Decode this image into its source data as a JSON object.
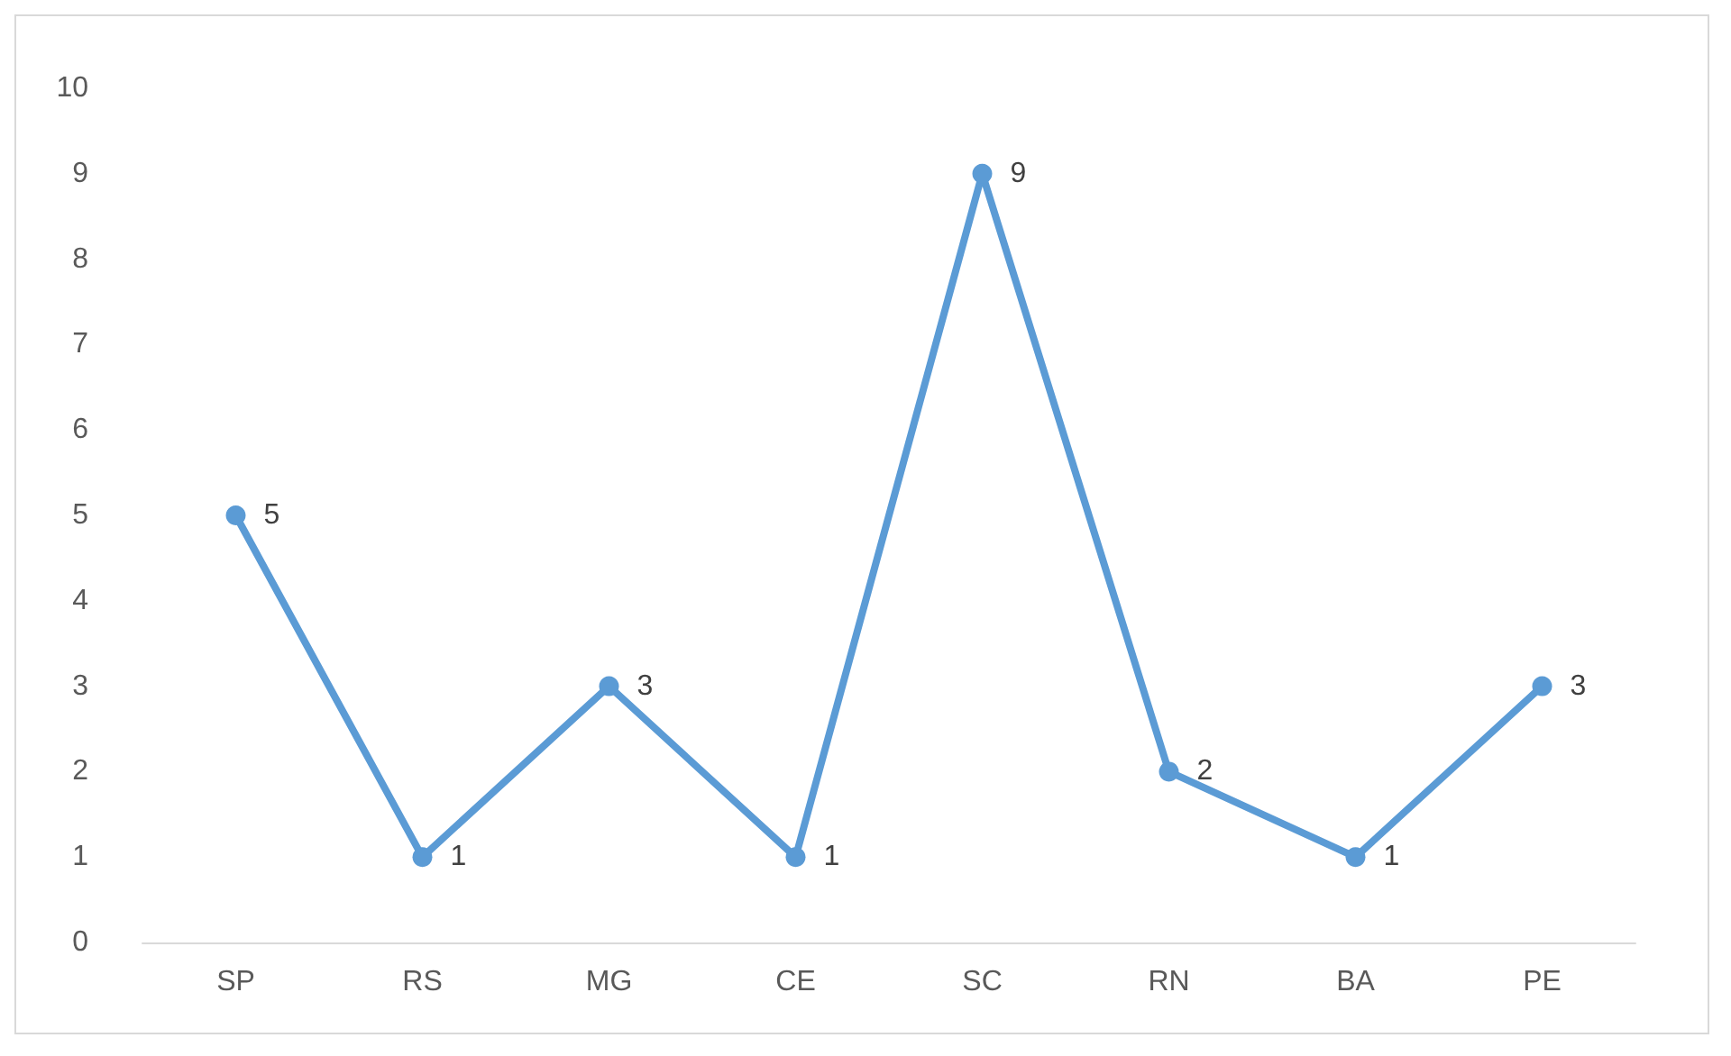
{
  "chart_data": {
    "type": "line",
    "categories": [
      "SP",
      "RS",
      "MG",
      "CE",
      "SC",
      "RN",
      "BA",
      "PE"
    ],
    "series": [
      {
        "color": "#5b9bd5",
        "values": [
          5,
          1,
          3,
          1,
          9,
          2,
          1,
          3
        ]
      }
    ],
    "ylim": [
      0,
      10
    ],
    "yticks": [
      0,
      1,
      2,
      3,
      4,
      5,
      6,
      7,
      8,
      9,
      10
    ],
    "grid": false,
    "marker": "circle",
    "line_style": "solid",
    "data_labels": true
  }
}
